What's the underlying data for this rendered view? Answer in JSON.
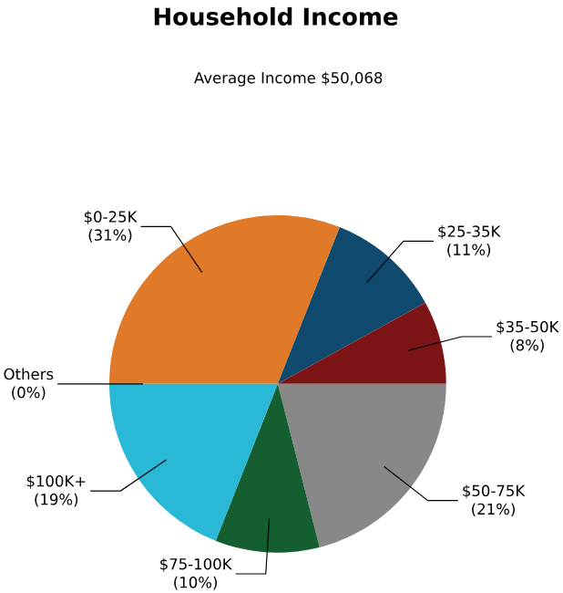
{
  "chart_data": {
    "type": "pie",
    "title": "Household Income",
    "subtitle": "Average Income  $50,068",
    "categories": [
      "$0-25K",
      "$25-35K",
      "$35-50K",
      "$50-75K",
      "$75-100K",
      "$100K+",
      "Others"
    ],
    "values": [
      31,
      11,
      8,
      21,
      10,
      19,
      0
    ],
    "value_labels": [
      "(31%)",
      "(11%)",
      "(8%)",
      "(21%)",
      "(10%)",
      "(19%)",
      "(0%)"
    ],
    "colors": [
      "#e07a28",
      "#0f4a6e",
      "#7d1416",
      "#888888",
      "#145e30",
      "#29b8d6",
      "#cccccc"
    ]
  }
}
